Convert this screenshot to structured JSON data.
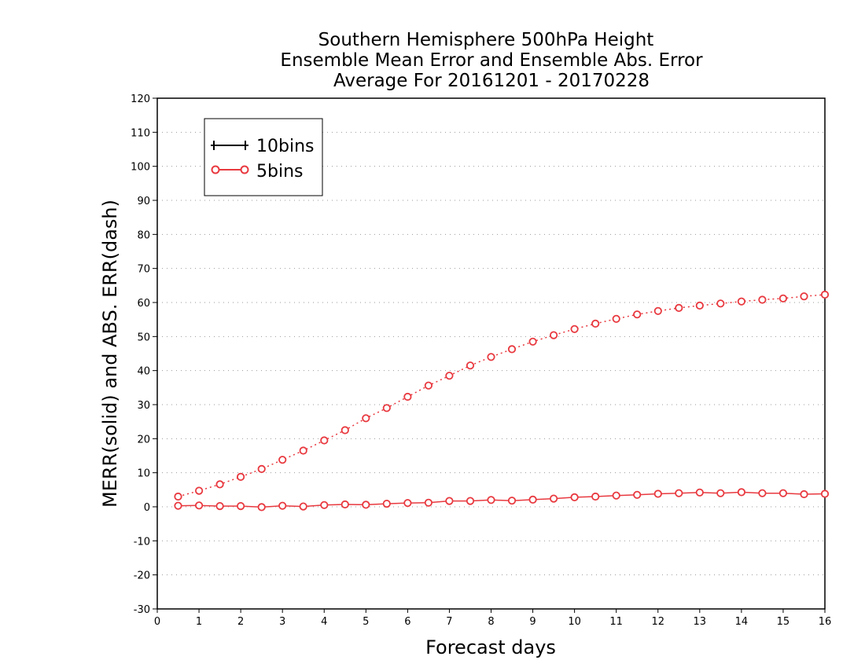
{
  "chart_data": {
    "type": "line",
    "title_lines": [
      "Southern Hemisphere 500hPa Height",
      "Ensemble Mean Error and Ensemble Abs. Error",
      "Average For 20161201 - 20170228"
    ],
    "xlabel": "Forecast days",
    "ylabel": "MERR(solid) and ABS. ERR(dash)",
    "xlim": [
      0,
      16
    ],
    "ylim": [
      -30,
      120
    ],
    "x_ticks": [
      0,
      1,
      2,
      3,
      4,
      5,
      6,
      7,
      8,
      9,
      10,
      11,
      12,
      13,
      14,
      15,
      16
    ],
    "y_ticks": [
      -30,
      -20,
      -10,
      0,
      10,
      20,
      30,
      40,
      50,
      60,
      70,
      80,
      90,
      100,
      110,
      120
    ],
    "grid": "horizontal dotted",
    "legend_position": "top-left",
    "legend": [
      {
        "label": "10bins",
        "color": "#000000",
        "marker": "plus"
      },
      {
        "label": "5bins",
        "color": "#e8393f",
        "marker": "circle"
      }
    ],
    "x": [
      0.5,
      1,
      1.5,
      2,
      2.5,
      3,
      3.5,
      4,
      4.5,
      5,
      5.5,
      6,
      6.5,
      7,
      7.5,
      8,
      8.5,
      9,
      9.5,
      10,
      10.5,
      11,
      11.5,
      12,
      12.5,
      13,
      13.5,
      14,
      14.5,
      15,
      15.5,
      16
    ],
    "series": [
      {
        "group": "5bins",
        "style": "solid",
        "color": "#e8393f",
        "values": [
          0.3,
          0.4,
          0.2,
          0.2,
          -0.1,
          0.3,
          0.1,
          0.5,
          0.7,
          0.6,
          0.9,
          1.1,
          1.2,
          1.7,
          1.7,
          2.0,
          1.8,
          2.1,
          2.4,
          2.8,
          3.0,
          3.3,
          3.5,
          3.8,
          4.0,
          4.2,
          4.0,
          4.3,
          4.0,
          4.0,
          3.7,
          3.8
        ]
      },
      {
        "group": "5bins",
        "style": "dash",
        "color": "#e8393f",
        "values": [
          3.0,
          4.7,
          6.6,
          8.8,
          11.1,
          13.8,
          16.5,
          19.5,
          22.5,
          26.0,
          29.0,
          32.3,
          35.6,
          38.5,
          41.5,
          44.0,
          46.3,
          48.5,
          50.4,
          52.2,
          53.8,
          55.2,
          56.5,
          57.5,
          58.4,
          59.1,
          59.7,
          60.3,
          60.8,
          61.2,
          61.8,
          62.3
        ]
      }
    ]
  }
}
